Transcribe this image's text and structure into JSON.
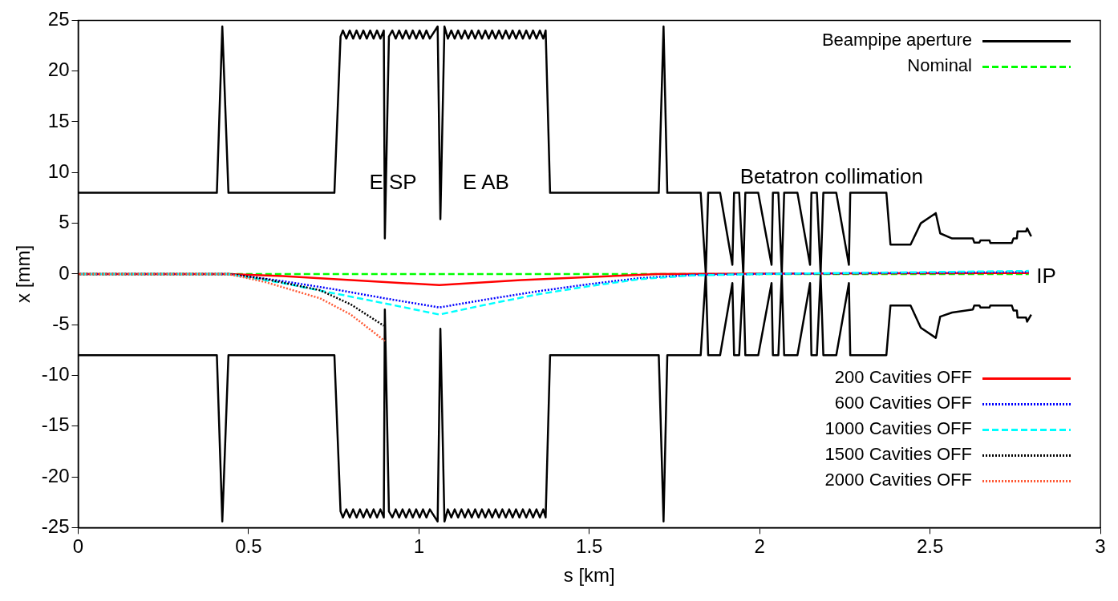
{
  "chart_data": {
    "type": "line",
    "xlabel": "s [km]",
    "ylabel": "x [mm]",
    "xlim": [
      0,
      3
    ],
    "ylim": [
      -25,
      25
    ],
    "xticks": [
      0,
      0.5,
      1,
      1.5,
      2,
      2.5,
      3
    ],
    "yticks": [
      -25,
      -20,
      -15,
      -10,
      -5,
      0,
      5,
      10,
      15,
      20,
      25
    ],
    "grid": false,
    "legend": "right",
    "marker": "none",
    "annotations": [
      "E SP",
      "E AB",
      "Betatron collimation",
      "IP"
    ],
    "series": [
      {
        "name": "Beampipe aperture",
        "color": "#000000",
        "line_style": "solid",
        "x": [
          0,
          0.407,
          0.423,
          0.441,
          0.752,
          0.77,
          0.777,
          0.787,
          0.797,
          0.807,
          0.817,
          0.827,
          0.837,
          0.847,
          0.857,
          0.867,
          0.877,
          0.887,
          0.897,
          0.9,
          0.912,
          0.922,
          0.932,
          0.942,
          0.952,
          0.962,
          0.972,
          0.982,
          0.992,
          1.002,
          1.012,
          1.022,
          1.032,
          1.055,
          1.063,
          1.075,
          1.085,
          1.095,
          1.105,
          1.115,
          1.125,
          1.135,
          1.145,
          1.155,
          1.165,
          1.175,
          1.185,
          1.195,
          1.205,
          1.215,
          1.225,
          1.235,
          1.245,
          1.255,
          1.265,
          1.275,
          1.285,
          1.295,
          1.305,
          1.315,
          1.325,
          1.335,
          1.345,
          1.355,
          1.365,
          1.372,
          1.385,
          1.704,
          1.718,
          1.729,
          1.827,
          1.842,
          1.849,
          1.884,
          1.92,
          1.925,
          1.94,
          1.952,
          1.958,
          1.996,
          2.035,
          2.039,
          2.055,
          2.065,
          2.072,
          2.111,
          2.148,
          2.152,
          2.168,
          2.179,
          2.187,
          2.225,
          2.262,
          2.266,
          2.372,
          2.384,
          2.443,
          2.473,
          2.517,
          2.53,
          2.565,
          2.626,
          2.63,
          2.645,
          2.648,
          2.675,
          2.677,
          2.74,
          2.745,
          2.755,
          2.757,
          2.782,
          2.785,
          2.797,
          null,
          0,
          0.407,
          0.423,
          0.441,
          0.752,
          0.77,
          0.777,
          0.787,
          0.797,
          0.807,
          0.817,
          0.827,
          0.837,
          0.847,
          0.857,
          0.867,
          0.877,
          0.887,
          0.897,
          0.9,
          0.912,
          0.922,
          0.932,
          0.942,
          0.952,
          0.962,
          0.972,
          0.982,
          0.992,
          1.002,
          1.012,
          1.022,
          1.032,
          1.055,
          1.063,
          1.075,
          1.085,
          1.095,
          1.105,
          1.115,
          1.125,
          1.135,
          1.145,
          1.155,
          1.165,
          1.175,
          1.185,
          1.195,
          1.205,
          1.215,
          1.225,
          1.235,
          1.245,
          1.255,
          1.265,
          1.275,
          1.285,
          1.295,
          1.305,
          1.315,
          1.325,
          1.335,
          1.345,
          1.355,
          1.365,
          1.372,
          1.385,
          1.704,
          1.718,
          1.729,
          1.827,
          1.842,
          1.849,
          1.884,
          1.92,
          1.925,
          1.94,
          1.952,
          1.958,
          1.996,
          2.035,
          2.039,
          2.055,
          2.065,
          2.072,
          2.111,
          2.148,
          2.152,
          2.168,
          2.179,
          2.187,
          2.225,
          2.262,
          2.266,
          2.372,
          2.384,
          2.443,
          2.473,
          2.517,
          2.53,
          2.565,
          2.626,
          2.63,
          2.645,
          2.648,
          2.675,
          2.677,
          2.74,
          2.745,
          2.755,
          2.757,
          2.782,
          2.785,
          2.797
        ],
        "values": [
          8,
          8,
          24.4,
          8,
          8,
          23.4,
          24,
          23.2,
          24,
          23.2,
          24,
          23.2,
          24,
          23.2,
          24,
          23.2,
          24,
          23.2,
          24,
          3.5,
          23.4,
          24,
          23.2,
          24,
          23.2,
          24,
          23.2,
          24,
          23.2,
          24,
          23.2,
          24,
          23.2,
          24.4,
          5.4,
          24.4,
          23.2,
          24,
          23.2,
          24,
          23.2,
          24,
          23.2,
          24,
          23.2,
          24,
          23.2,
          24,
          23.2,
          24,
          23.2,
          24,
          23.2,
          24,
          23.2,
          24,
          23.2,
          24,
          23.2,
          24,
          23.2,
          24,
          23.2,
          24,
          23.2,
          24,
          8,
          8,
          24.4,
          8,
          8,
          0,
          8,
          8,
          0.9,
          8,
          8,
          0,
          8,
          8,
          0.9,
          8,
          8,
          0,
          8,
          8,
          0.9,
          8,
          8,
          0,
          8,
          8,
          0.9,
          8,
          8,
          2.9,
          2.9,
          5.0,
          6.0,
          4.0,
          3.5,
          3.5,
          3.1,
          3.1,
          3.3,
          3.3,
          3.05,
          3.05,
          3.5,
          3.5,
          4.2,
          4.2,
          4.5,
          3.7,
          null,
          -8,
          -8,
          -24.4,
          -8,
          -8,
          -23.4,
          -24,
          -23.2,
          -24,
          -23.2,
          -24,
          -23.2,
          -24,
          -23.2,
          -24,
          -23.2,
          -24,
          -23.2,
          -24,
          -3.5,
          -23.4,
          -24,
          -23.2,
          -24,
          -23.2,
          -24,
          -23.2,
          -24,
          -23.2,
          -24,
          -23.2,
          -24,
          -23.2,
          -24.4,
          -5.4,
          -24.4,
          -23.2,
          -24,
          -23.2,
          -24,
          -23.2,
          -24,
          -23.2,
          -24,
          -23.2,
          -24,
          -23.2,
          -24,
          -23.2,
          -24,
          -23.2,
          -24,
          -23.2,
          -24,
          -23.2,
          -24,
          -23.2,
          -24,
          -23.2,
          -24,
          -23.2,
          -24,
          -23.2,
          -24,
          -23.2,
          -24,
          -8,
          -8,
          -24.4,
          -8,
          -8,
          0,
          -8,
          -8,
          -0.9,
          -8,
          -8,
          0,
          -8,
          -8,
          -0.9,
          -8,
          -8,
          0,
          -8,
          -8,
          -0.9,
          -8,
          -8,
          0,
          -8,
          -8,
          -0.9,
          -8,
          -8,
          -3.1,
          -3.1,
          -5.3,
          -6.3,
          -4.2,
          -3.8,
          -3.5,
          -3.1,
          -3.1,
          -3.3,
          -3.3,
          -3.1,
          -3.1,
          -3.6,
          -3.6,
          -4.3,
          -4.3,
          -4.7,
          -4.0
        ]
      },
      {
        "name": "Nominal",
        "color": "#00ff00",
        "line_style": "dashed",
        "x": [
          0,
          2.79
        ],
        "values": [
          0,
          0
        ]
      },
      {
        "name": "200 Cavities OFF",
        "color": "#ff0000",
        "line_style": "solid",
        "x": [
          0,
          0.44,
          0.6,
          0.8,
          1.06,
          1.3,
          1.5,
          1.7,
          2.79
        ],
        "values": [
          0,
          0,
          -0.2,
          -0.6,
          -1.1,
          -0.6,
          -0.3,
          0,
          0.1
        ]
      },
      {
        "name": "600 Cavities OFF",
        "color": "#0000ff",
        "line_style": "dotted",
        "x": [
          0,
          0.44,
          0.6,
          0.75,
          0.9,
          1.06,
          1.2,
          1.35,
          1.5,
          1.65,
          1.8,
          2.0,
          2.79
        ],
        "values": [
          0,
          0,
          -0.7,
          -1.5,
          -2.4,
          -3.3,
          -2.5,
          -1.7,
          -1.0,
          -0.4,
          -0.1,
          0,
          0.2
        ]
      },
      {
        "name": "1000 Cavities OFF",
        "color": "#00ffff",
        "line_style": "dashed",
        "x": [
          0,
          0.44,
          0.6,
          0.75,
          0.9,
          1.06,
          1.2,
          1.35,
          1.5,
          1.65,
          1.8,
          2.0,
          2.79
        ],
        "values": [
          0,
          0,
          -0.9,
          -1.9,
          -2.9,
          -4.0,
          -3.0,
          -2.0,
          -1.2,
          -0.5,
          -0.15,
          0,
          0.3
        ]
      },
      {
        "name": "1500 Cavities OFF",
        "color": "#000000",
        "line_style": "dotted",
        "x": [
          0,
          0.44,
          0.55,
          0.71,
          0.8,
          0.897
        ],
        "values": [
          0,
          0,
          -0.5,
          -1.6,
          -3.0,
          -5.1
        ]
      },
      {
        "name": "2000 Cavities OFF",
        "color": "#ff5a36",
        "line_style": "dotted",
        "x": [
          0,
          0.44,
          0.55,
          0.71,
          0.8,
          0.9
        ],
        "values": [
          0,
          0,
          -0.8,
          -2.4,
          -4.0,
          -6.6
        ]
      }
    ]
  }
}
